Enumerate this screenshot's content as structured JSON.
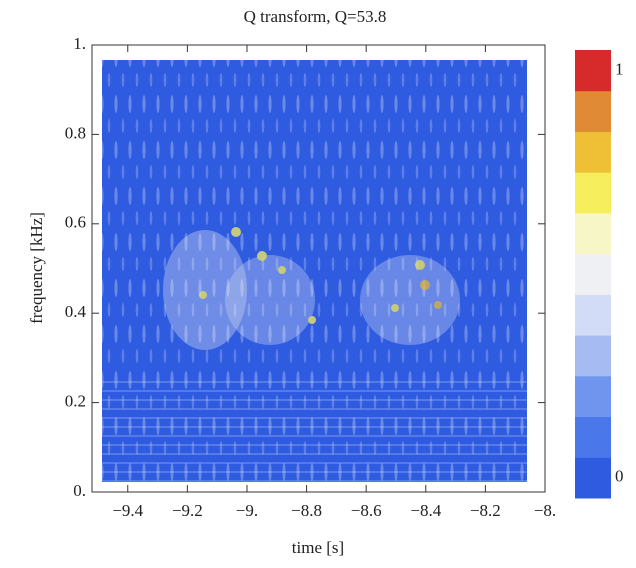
{
  "chart_data": {
    "type": "heatmap",
    "title": "Q transform, Q=53.8",
    "xlabel": "time [s]",
    "ylabel": "frequency [kHz]",
    "xlim": [
      -9.52,
      -8.0
    ],
    "xticks": [
      {
        "value": -9.4,
        "label": "−9.4"
      },
      {
        "value": -9.2,
        "label": "−9.2"
      },
      {
        "value": -9,
        "label": "−9."
      },
      {
        "value": -8.8,
        "label": "−8.8"
      },
      {
        "value": -8.6,
        "label": "−8.6"
      },
      {
        "value": -8.4,
        "label": "−8.4"
      },
      {
        "value": -8.2,
        "label": "−8.2"
      },
      {
        "value": -8,
        "label": "−8."
      }
    ],
    "ylim": [
      0,
      1
    ],
    "yticks": [
      {
        "value": 0,
        "label": "0."
      },
      0.2,
      0.4,
      0.6,
      0.8,
      {
        "value": 1,
        "label": "1."
      }
    ],
    "colormap": [
      "#2f5be0",
      "#4a78ea",
      "#6f95ee",
      "#a6bbf2",
      "#d3dcf6",
      "#eef0f3",
      "#f7f6c6",
      "#f6ee5c",
      "#efbf36",
      "#e08a36",
      "#d72b2b"
    ],
    "clim": [
      0,
      1
    ],
    "cticks": [
      0,
      1
    ]
  }
}
